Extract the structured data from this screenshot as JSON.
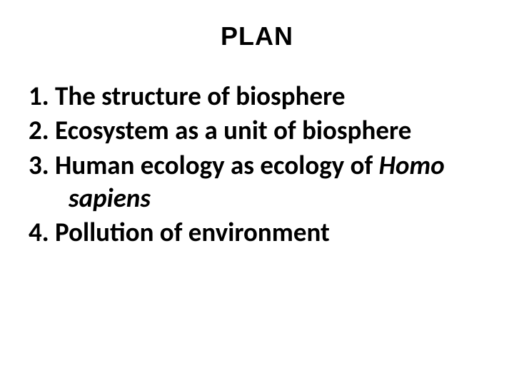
{
  "title": "PLAN",
  "items": [
    {
      "text": "The structure of biosphere",
      "hasItalic": false
    },
    {
      "text": "Ecosystem as a unit of biosphere",
      "hasItalic": false
    },
    {
      "textBefore": "Human ecology as ecology of ",
      "italicText": "Homo sapiens",
      "hasItalic": true
    },
    {
      "text": "Pollution of environment",
      "hasItalic": false
    }
  ],
  "colors": {
    "background": "#ffffff",
    "text": "#000000"
  },
  "typography": {
    "title_font": "Comic Sans MS",
    "title_fontsize": 36,
    "body_font": "Calibri",
    "body_fontsize": 37,
    "body_weight": "bold"
  }
}
